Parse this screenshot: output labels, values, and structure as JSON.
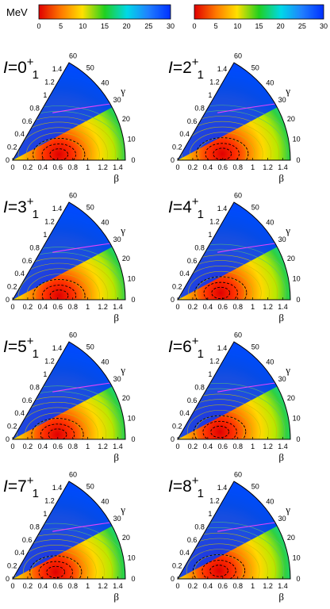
{
  "chart_data": {
    "type": "heatmap",
    "geometry": "polar-sextant",
    "colorbar": {
      "unit": "MeV",
      "range": [
        0,
        30
      ],
      "ticks": [
        "0",
        "5",
        "10",
        "15",
        "20",
        "25",
        "30"
      ],
      "colormap": [
        "#e00000",
        "#ff7a00",
        "#ffe000",
        "#20d020",
        "#00d8e8",
        "#2080ff",
        "#0030ff"
      ],
      "count": 2
    },
    "axes": {
      "beta_label": "β",
      "gamma_label": "γ",
      "beta_range": [
        0,
        1.5
      ],
      "gamma_range_deg": [
        0,
        60
      ],
      "beta_ticks": [
        "0",
        "0.2",
        "0.4",
        "0.6",
        "0.8",
        "1",
        "1.2",
        "1.4"
      ],
      "gamma_ticks": [
        "0",
        "10",
        "20",
        "30",
        "40",
        "50",
        "60"
      ]
    },
    "panels": [
      {
        "italic": "I",
        "eq": "=",
        "base": "0",
        "sup": "+",
        "sub": "1",
        "min_beta": 0.62,
        "min_gamma": 7
      },
      {
        "italic": "I",
        "eq": "=",
        "base": "2",
        "sup": "+",
        "sub": "1",
        "min_beta": 0.6,
        "min_gamma": 8
      },
      {
        "italic": "I",
        "eq": "=",
        "base": "3",
        "sup": "+",
        "sub": "1",
        "min_beta": 0.62,
        "min_gamma": 5
      },
      {
        "italic": "I",
        "eq": "=",
        "base": "4",
        "sup": "+",
        "sub": "1",
        "min_beta": 0.58,
        "min_gamma": 9
      },
      {
        "italic": "I",
        "eq": "=",
        "base": "5",
        "sup": "+",
        "sub": "1",
        "min_beta": 0.6,
        "min_gamma": 6
      },
      {
        "italic": "I",
        "eq": "=",
        "base": "6",
        "sup": "+",
        "sub": "1",
        "min_beta": 0.57,
        "min_gamma": 10
      },
      {
        "italic": "I",
        "eq": "=",
        "base": "7",
        "sup": "+",
        "sub": "1",
        "min_beta": 0.58,
        "min_gamma": 9
      },
      {
        "italic": "I",
        "eq": "=",
        "base": "8",
        "sup": "+",
        "sub": "1",
        "min_beta": 0.56,
        "min_gamma": 11
      }
    ],
    "grid": false,
    "legend": "top"
  }
}
